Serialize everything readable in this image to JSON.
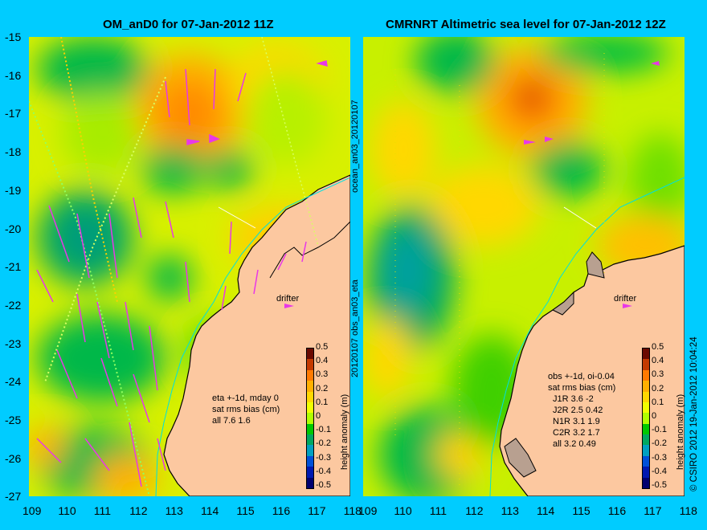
{
  "left_panel": {
    "title": "OM_anD0 for 07-Jan-2012 11Z",
    "stats_lines": [
      "eta +-1d, mday 0",
      "sat rms bias (cm)",
      "all 7.6 1.6"
    ],
    "drifter_label": "drifter"
  },
  "right_panel": {
    "title": "CMRNRT Altimetric sea level  for 07-Jan-2012 12Z",
    "stats_lines": [
      "obs +-1d, oi-0.04",
      "sat rms bias (cm)",
      "J1R   3.6  -2",
      "J2R   2.5 0.42",
      "N1R   3.1 1.9",
      "C2R   3.2 1.7",
      "all 3.2 0.49"
    ],
    "drifter_label": "drifter"
  },
  "middle_labels": {
    "top": "ocean_an03_20120107",
    "bottom": "20120107 obs_an03_eta"
  },
  "right_edge_label": "© CSIRO 2012  19-Jan-2012 10:04:24",
  "colorbar": {
    "label": "height anomaly (m)",
    "ticks": [
      "0.5",
      "0.4",
      "0.3",
      "0.2",
      "0.1",
      "0",
      "-0.1",
      "-0.2",
      "-0.3",
      "-0.4",
      "-0.5"
    ],
    "colors": [
      "#6b0a00",
      "#c43a00",
      "#ff7a00",
      "#ffb000",
      "#ffd800",
      "#f0ff00",
      "#b0ff00",
      "#00c800",
      "#00a860",
      "#00a0c0",
      "#0050d8",
      "#0018b0",
      "#000070"
    ]
  },
  "axes": {
    "lat_ticks": [
      "-15",
      "-16",
      "-17",
      "-18",
      "-19",
      "-20",
      "-21",
      "-22",
      "-23",
      "-24",
      "-25",
      "-26",
      "-27"
    ],
    "lon_ticks": [
      "109",
      "110",
      "111",
      "112",
      "113",
      "114",
      "115",
      "116",
      "117",
      "118"
    ]
  },
  "colors": {
    "frame": "#00ccff",
    "land": "#fcc8a0",
    "vector": "#e838e8",
    "coast": "#000000"
  }
}
